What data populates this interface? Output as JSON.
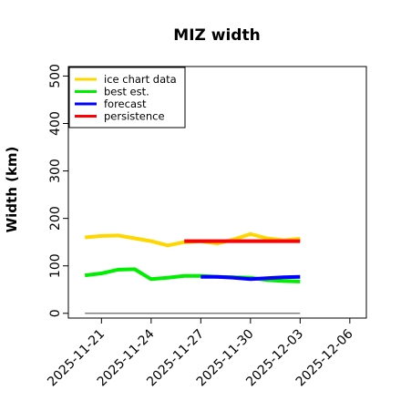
{
  "chart_data": {
    "type": "line",
    "title": "MIZ width",
    "ylabel": "Width (km)",
    "xlabel": "",
    "ylim": [
      -10,
      520
    ],
    "xlim": [
      "2025-11-19",
      "2025-12-07"
    ],
    "yticks": [
      0,
      100,
      200,
      300,
      400,
      500
    ],
    "xticks": [
      "2025-11-21",
      "2025-11-24",
      "2025-11-27",
      "2025-11-30",
      "2025-12-03",
      "2025-12-06"
    ],
    "highlight_tick": "2025-11-27",
    "highlight_tick_color": "#2e8b22",
    "legend_position": "upper-left",
    "grid": false,
    "series": [
      {
        "name": "ice chart data",
        "color": "#ffd700",
        "x": [
          "2025-11-20",
          "2025-11-21",
          "2025-11-22",
          "2025-11-23",
          "2025-11-24",
          "2025-11-25",
          "2025-11-26",
          "2025-11-27",
          "2025-11-28",
          "2025-11-29",
          "2025-11-30",
          "2025-12-01",
          "2025-12-02",
          "2025-12-03"
        ],
        "y": [
          160,
          163,
          164,
          158,
          152,
          143,
          150,
          152,
          147,
          156,
          167,
          158,
          154,
          157
        ]
      },
      {
        "name": "best est.",
        "color": "#00ee00",
        "x": [
          "2025-11-20",
          "2025-11-21",
          "2025-11-22",
          "2025-11-23",
          "2025-11-24",
          "2025-11-25",
          "2025-11-26",
          "2025-11-27",
          "2025-11-28",
          "2025-11-29",
          "2025-11-30",
          "2025-12-01",
          "2025-12-02",
          "2025-12-03"
        ],
        "y": [
          80,
          84,
          92,
          93,
          72,
          75,
          79,
          79,
          77,
          76,
          75,
          70,
          68,
          67
        ]
      },
      {
        "name": "forecast",
        "color": "#0000ff",
        "x": [
          "2025-11-27",
          "2025-11-28",
          "2025-11-29",
          "2025-11-30",
          "2025-12-01",
          "2025-12-02",
          "2025-12-03"
        ],
        "y": [
          77,
          77,
          75,
          72,
          74,
          76,
          77
        ]
      },
      {
        "name": "persistence",
        "color": "#ff0000",
        "x": [
          "2025-11-26",
          "2025-11-27",
          "2025-11-28",
          "2025-11-29",
          "2025-11-30",
          "2025-12-01",
          "2025-12-02",
          "2025-12-03"
        ],
        "y": [
          152,
          152,
          152,
          152,
          152,
          152,
          152,
          152
        ]
      },
      {
        "color": "#808080",
        "x": [
          "2025-11-20",
          "2025-12-03"
        ],
        "y": [
          0,
          0
        ]
      }
    ]
  }
}
